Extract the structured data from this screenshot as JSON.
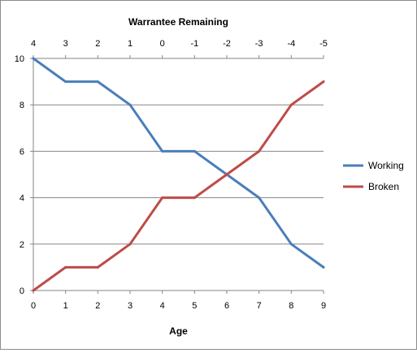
{
  "chart_data": {
    "type": "line",
    "title": "",
    "x": [
      0,
      1,
      2,
      3,
      4,
      5,
      6,
      7,
      8,
      9
    ],
    "x_top": [
      4,
      3,
      2,
      1,
      0,
      -1,
      -2,
      -3,
      -4,
      -5
    ],
    "xlabel": "Age",
    "xlabel_top": "Warrantee Remaining",
    "ylabel": "",
    "xlim": [
      0,
      9
    ],
    "ylim": [
      0,
      10
    ],
    "y_ticks": [
      0,
      2,
      4,
      6,
      8,
      10
    ],
    "grid": true,
    "legend_position": "right",
    "series": [
      {
        "name": "Working",
        "color": "#4a7ebb",
        "values": [
          10,
          9,
          9,
          8,
          6,
          6,
          5,
          4,
          2,
          1
        ]
      },
      {
        "name": "Broken",
        "color": "#be4b48",
        "values": [
          0,
          1,
          1,
          2,
          4,
          4,
          5,
          6,
          8,
          9
        ]
      }
    ]
  }
}
